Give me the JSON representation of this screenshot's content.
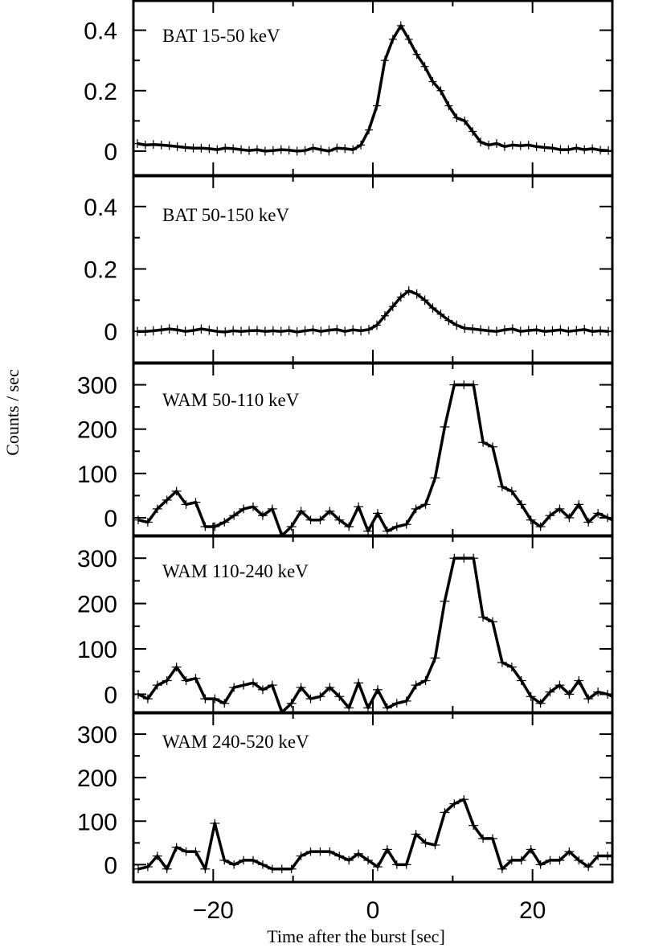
{
  "chart_data": {
    "type": "line",
    "ylabel": "Counts / sec",
    "xlabel": "Time after the burst [sec]",
    "xlim": [
      -30,
      30
    ],
    "x_ticks": [
      -20,
      0,
      20
    ],
    "x_tick_labels": [
      "−20",
      "0",
      "20"
    ],
    "panels": [
      {
        "label": "BAT 15-50 keV",
        "ylim": [
          -0.08,
          0.5
        ],
        "y_ticks": [
          0,
          0.2,
          0.4
        ],
        "y_tick_labels": [
          "0",
          "0.2",
          "0.4"
        ],
        "bin_width": 1,
        "x_start": -29.5,
        "values": [
          0.025,
          0.02,
          0.022,
          0.02,
          0.018,
          0.015,
          0.012,
          0.01,
          0.01,
          0.008,
          0.005,
          0.01,
          0.008,
          0.005,
          0.002,
          0.005,
          0.0,
          0.002,
          0.005,
          0.003,
          0.0,
          0.002,
          0.01,
          0.005,
          0.0,
          0.01,
          0.008,
          0.005,
          0.02,
          0.07,
          0.15,
          0.3,
          0.37,
          0.415,
          0.37,
          0.32,
          0.28,
          0.23,
          0.2,
          0.15,
          0.11,
          0.1,
          0.065,
          0.03,
          0.02,
          0.025,
          0.015,
          0.02,
          0.018,
          0.02,
          0.015,
          0.012,
          0.01,
          0.005,
          0.005,
          0.01,
          0.005,
          0.008,
          0.003,
          0.002
        ]
      },
      {
        "label": "BAT 50-150 keV",
        "ylim": [
          -0.1,
          0.5
        ],
        "y_ticks": [
          0,
          0.2,
          0.4
        ],
        "y_tick_labels": [
          "0",
          "0.2",
          "0.4"
        ],
        "bin_width": 1,
        "x_start": -29.5,
        "values": [
          0.0,
          0.0,
          0.002,
          0.005,
          0.008,
          0.005,
          0.0,
          0.003,
          0.008,
          0.004,
          0.0,
          -0.002,
          0.002,
          0.0,
          0.002,
          0.003,
          0.0,
          0.002,
          0.0,
          0.003,
          -0.002,
          0.002,
          0.005,
          0.0,
          0.004,
          0.006,
          0.0,
          0.005,
          0.002,
          0.006,
          0.02,
          0.05,
          0.08,
          0.11,
          0.13,
          0.12,
          0.1,
          0.075,
          0.055,
          0.035,
          0.02,
          0.01,
          0.008,
          0.005,
          0.002,
          0.0,
          0.005,
          0.008,
          0.0,
          0.003,
          0.005,
          0.0,
          0.002,
          0.005,
          0.0,
          0.003,
          0.006,
          0.0,
          0.002,
          0.0
        ]
      },
      {
        "label": "WAM 50-110 keV",
        "ylim": [
          -40,
          350
        ],
        "y_ticks": [
          0,
          100,
          200,
          300
        ],
        "y_tick_labels": [
          "0",
          "100",
          "200",
          "300"
        ],
        "bin_width": 1.2,
        "x_start": -29.4,
        "values": [
          -5,
          -10,
          20,
          40,
          60,
          30,
          35,
          -20,
          -20,
          -10,
          5,
          20,
          25,
          5,
          20,
          -40,
          -20,
          15,
          -5,
          -5,
          15,
          -5,
          -20,
          25,
          -30,
          10,
          -30,
          -20,
          -15,
          20,
          30,
          90,
          205,
          300,
          300,
          300,
          170,
          160,
          70,
          60,
          30,
          -5,
          -20,
          5,
          20,
          0,
          30,
          -10,
          10,
          0,
          -10,
          -15,
          10,
          -5,
          5,
          -10,
          -15,
          -5,
          -20,
          20
        ]
      },
      {
        "label": "WAM 110-240 keV",
        "ylim": [
          -40,
          350
        ],
        "y_ticks": [
          0,
          100,
          200,
          300
        ],
        "y_tick_labels": [
          "0",
          "100",
          "200",
          "300"
        ],
        "bin_width": 1.2,
        "x_start": -29.4,
        "values": [
          0,
          -10,
          20,
          30,
          60,
          30,
          35,
          -10,
          -10,
          -20,
          15,
          20,
          25,
          10,
          20,
          -40,
          -20,
          15,
          -10,
          -5,
          15,
          -5,
          -30,
          25,
          -30,
          10,
          -30,
          -20,
          -15,
          20,
          30,
          80,
          205,
          300,
          300,
          300,
          170,
          160,
          70,
          60,
          30,
          -5,
          -20,
          5,
          20,
          0,
          30,
          -10,
          5,
          0,
          -10,
          -15,
          10,
          0,
          5,
          -10,
          -15,
          -5,
          -20,
          20
        ]
      },
      {
        "label": "WAM 240-520 keV",
        "ylim": [
          -40,
          350
        ],
        "y_ticks": [
          0,
          100,
          200,
          300
        ],
        "y_tick_labels": [
          "0",
          "100",
          "200",
          "300"
        ],
        "bin_width": 1.2,
        "x_start": -29.4,
        "values": [
          -10,
          -5,
          20,
          -10,
          40,
          30,
          30,
          -10,
          95,
          10,
          0,
          10,
          10,
          0,
          -10,
          -10,
          -10,
          20,
          30,
          30,
          30,
          20,
          10,
          25,
          10,
          -5,
          35,
          0,
          0,
          70,
          50,
          45,
          120,
          140,
          150,
          90,
          60,
          60,
          -10,
          10,
          10,
          35,
          0,
          10,
          10,
          30,
          10,
          -5,
          20,
          20,
          20,
          30,
          0,
          10,
          20,
          -20,
          -10,
          5,
          20,
          20
        ]
      }
    ]
  }
}
